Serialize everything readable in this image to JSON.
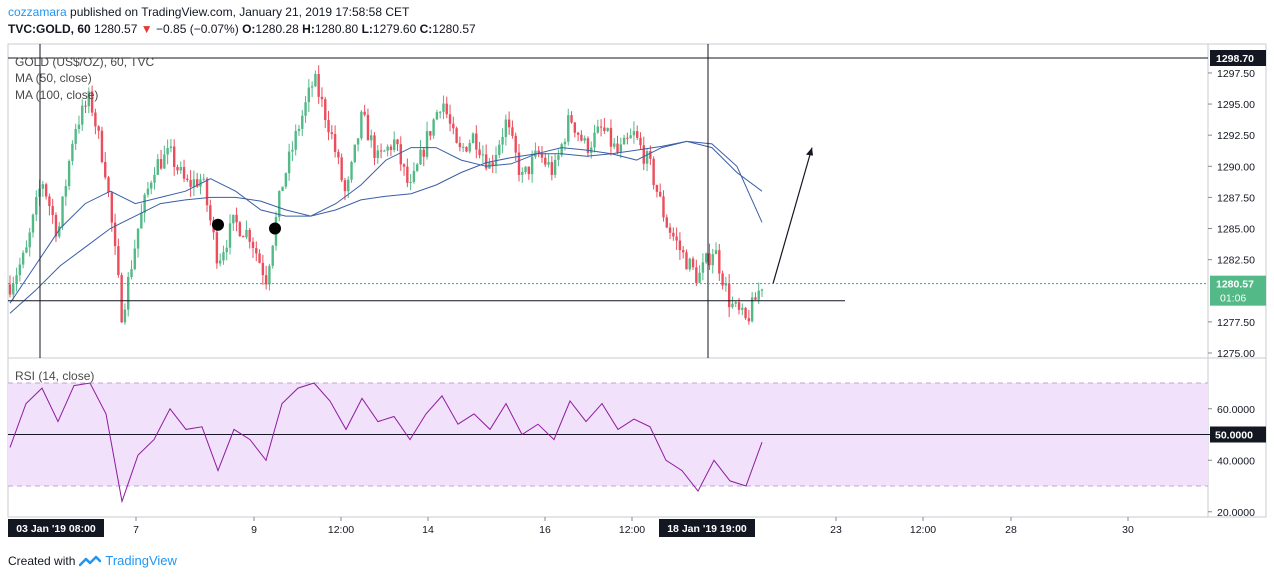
{
  "header": {
    "user": "cozzamara",
    "published_text": "published on TradingView.com, January 21, 2019 17:58:58 CET",
    "symbol": "TVC:GOLD, 60",
    "last": "1280.57",
    "change_arrow": "▼",
    "change": "−0.85 (−0.07%)",
    "o_label": "O:",
    "o_val": "1280.28",
    "h_label": "H:",
    "h_val": "1280.80",
    "l_label": "L:",
    "l_val": "1279.60",
    "c_label": "C:",
    "c_val": "1280.57"
  },
  "legend": {
    "title": "GOLD (US$/OZ), 60, TVC",
    "ma50": "MA (50, close)",
    "ma100": "MA (100, close)",
    "rsi": "RSI (14, close)"
  },
  "colors": {
    "up": "#53b987",
    "down": "#eb4d5c",
    "ma": "#3a5ea8",
    "rsi": "#8e1c9e",
    "rsi_band": "#f1e1fb",
    "price_line": "#26a69a",
    "crosshair_tag": "#131722"
  },
  "price_axis": {
    "ticks": [
      "1297.50",
      "1295.00",
      "1292.50",
      "1290.00",
      "1287.50",
      "1285.00",
      "1282.50",
      "1277.50",
      "1275.00"
    ],
    "crosshair_label": "1298.70",
    "last_label": "1280.57",
    "countdown": "01:06"
  },
  "rsi_axis": {
    "ticks": [
      "60.0000",
      "40.0000",
      "20.0000"
    ],
    "crosshair_label": "50.0000"
  },
  "time_axis": {
    "ticks": [
      "7",
      "9",
      "12:00",
      "14",
      "16",
      "12:00",
      "23",
      "12:00",
      "28",
      "30"
    ],
    "label_left": "03 Jan '19   08:00",
    "label_mid": "18 Jan '19   19:00"
  },
  "footer": {
    "created_with": "Created with",
    "brand": "TradingView"
  },
  "chart_data": [
    {
      "type": "candlestick",
      "title": "GOLD (US$/OZ), 60, TVC",
      "ylim": [
        1275.0,
        1299.0
      ],
      "series": [
        {
          "name": "MA (50, close)",
          "values": [
            1279.0,
            1282.0,
            1285.0,
            1287.0,
            1288.0,
            1287.0,
            1287.5,
            1288.0,
            1289.0,
            1288.0,
            1286.5,
            1286.0,
            1286.0,
            1287.0,
            1288.5,
            1290.5,
            1291.5,
            1291.5,
            1290.5,
            1290.0,
            1290.2,
            1291.0,
            1291.5,
            1291.3,
            1291.0,
            1290.5,
            1291.5,
            1292.0,
            1291.5,
            1289.5,
            1288.0
          ]
        },
        {
          "name": "MA (100, close)",
          "values": [
            1278.2,
            1280.0,
            1282.0,
            1283.5,
            1285.0,
            1286.0,
            1287.0,
            1287.3,
            1287.5,
            1287.5,
            1287.2,
            1286.5,
            1286.0,
            1286.5,
            1287.3,
            1287.6,
            1287.8,
            1288.5,
            1289.5,
            1290.3,
            1290.7,
            1291.0,
            1291.0,
            1290.8,
            1291.0,
            1291.3,
            1291.6,
            1292.0,
            1291.8,
            1290.0,
            1285.5
          ]
        }
      ],
      "ohlc_path": [
        1280.5,
        1283.0,
        1289.0,
        1284.5,
        1293.0,
        1295.5,
        1289.5,
        1278.0,
        1285.0,
        1290.0,
        1291.0,
        1288.5,
        1289.0,
        1282.5,
        1285.5,
        1284.5,
        1281.0,
        1288.5,
        1293.0,
        1297.0,
        1293.0,
        1287.5,
        1294.0,
        1290.5,
        1292.0,
        1288.0,
        1292.0,
        1295.5,
        1291.0,
        1292.5,
        1290.0,
        1293.5,
        1289.0,
        1291.0,
        1289.5,
        1294.0,
        1291.5,
        1293.0,
        1291.0,
        1292.5,
        1290.0,
        1285.5,
        1283.0,
        1281.0,
        1283.5,
        1279.0,
        1277.5,
        1280.57
      ],
      "last_price": 1280.57,
      "annotations": [
        "arrow up from 1280.57 toward 1291.5",
        "marker near 1285.3",
        "marker near 1285.0",
        "horizontal line at 1279.2",
        "crosshair at 1298.70"
      ]
    },
    {
      "type": "line",
      "title": "RSI (14, close)",
      "ylim": [
        18,
        73
      ],
      "bands": [
        30,
        50,
        70
      ],
      "series": [
        {
          "name": "RSI (14, close)",
          "values": [
            45,
            62,
            68,
            55,
            69,
            70,
            58,
            24,
            42,
            48,
            60,
            52,
            53,
            36,
            52,
            48,
            40,
            62,
            68,
            70,
            63,
            52,
            64,
            55,
            57,
            48,
            58,
            65,
            54,
            58,
            52,
            62,
            50,
            54,
            48,
            63,
            55,
            62,
            52,
            56,
            53,
            40,
            36,
            28,
            40,
            32,
            30,
            47
          ]
        }
      ]
    }
  ]
}
